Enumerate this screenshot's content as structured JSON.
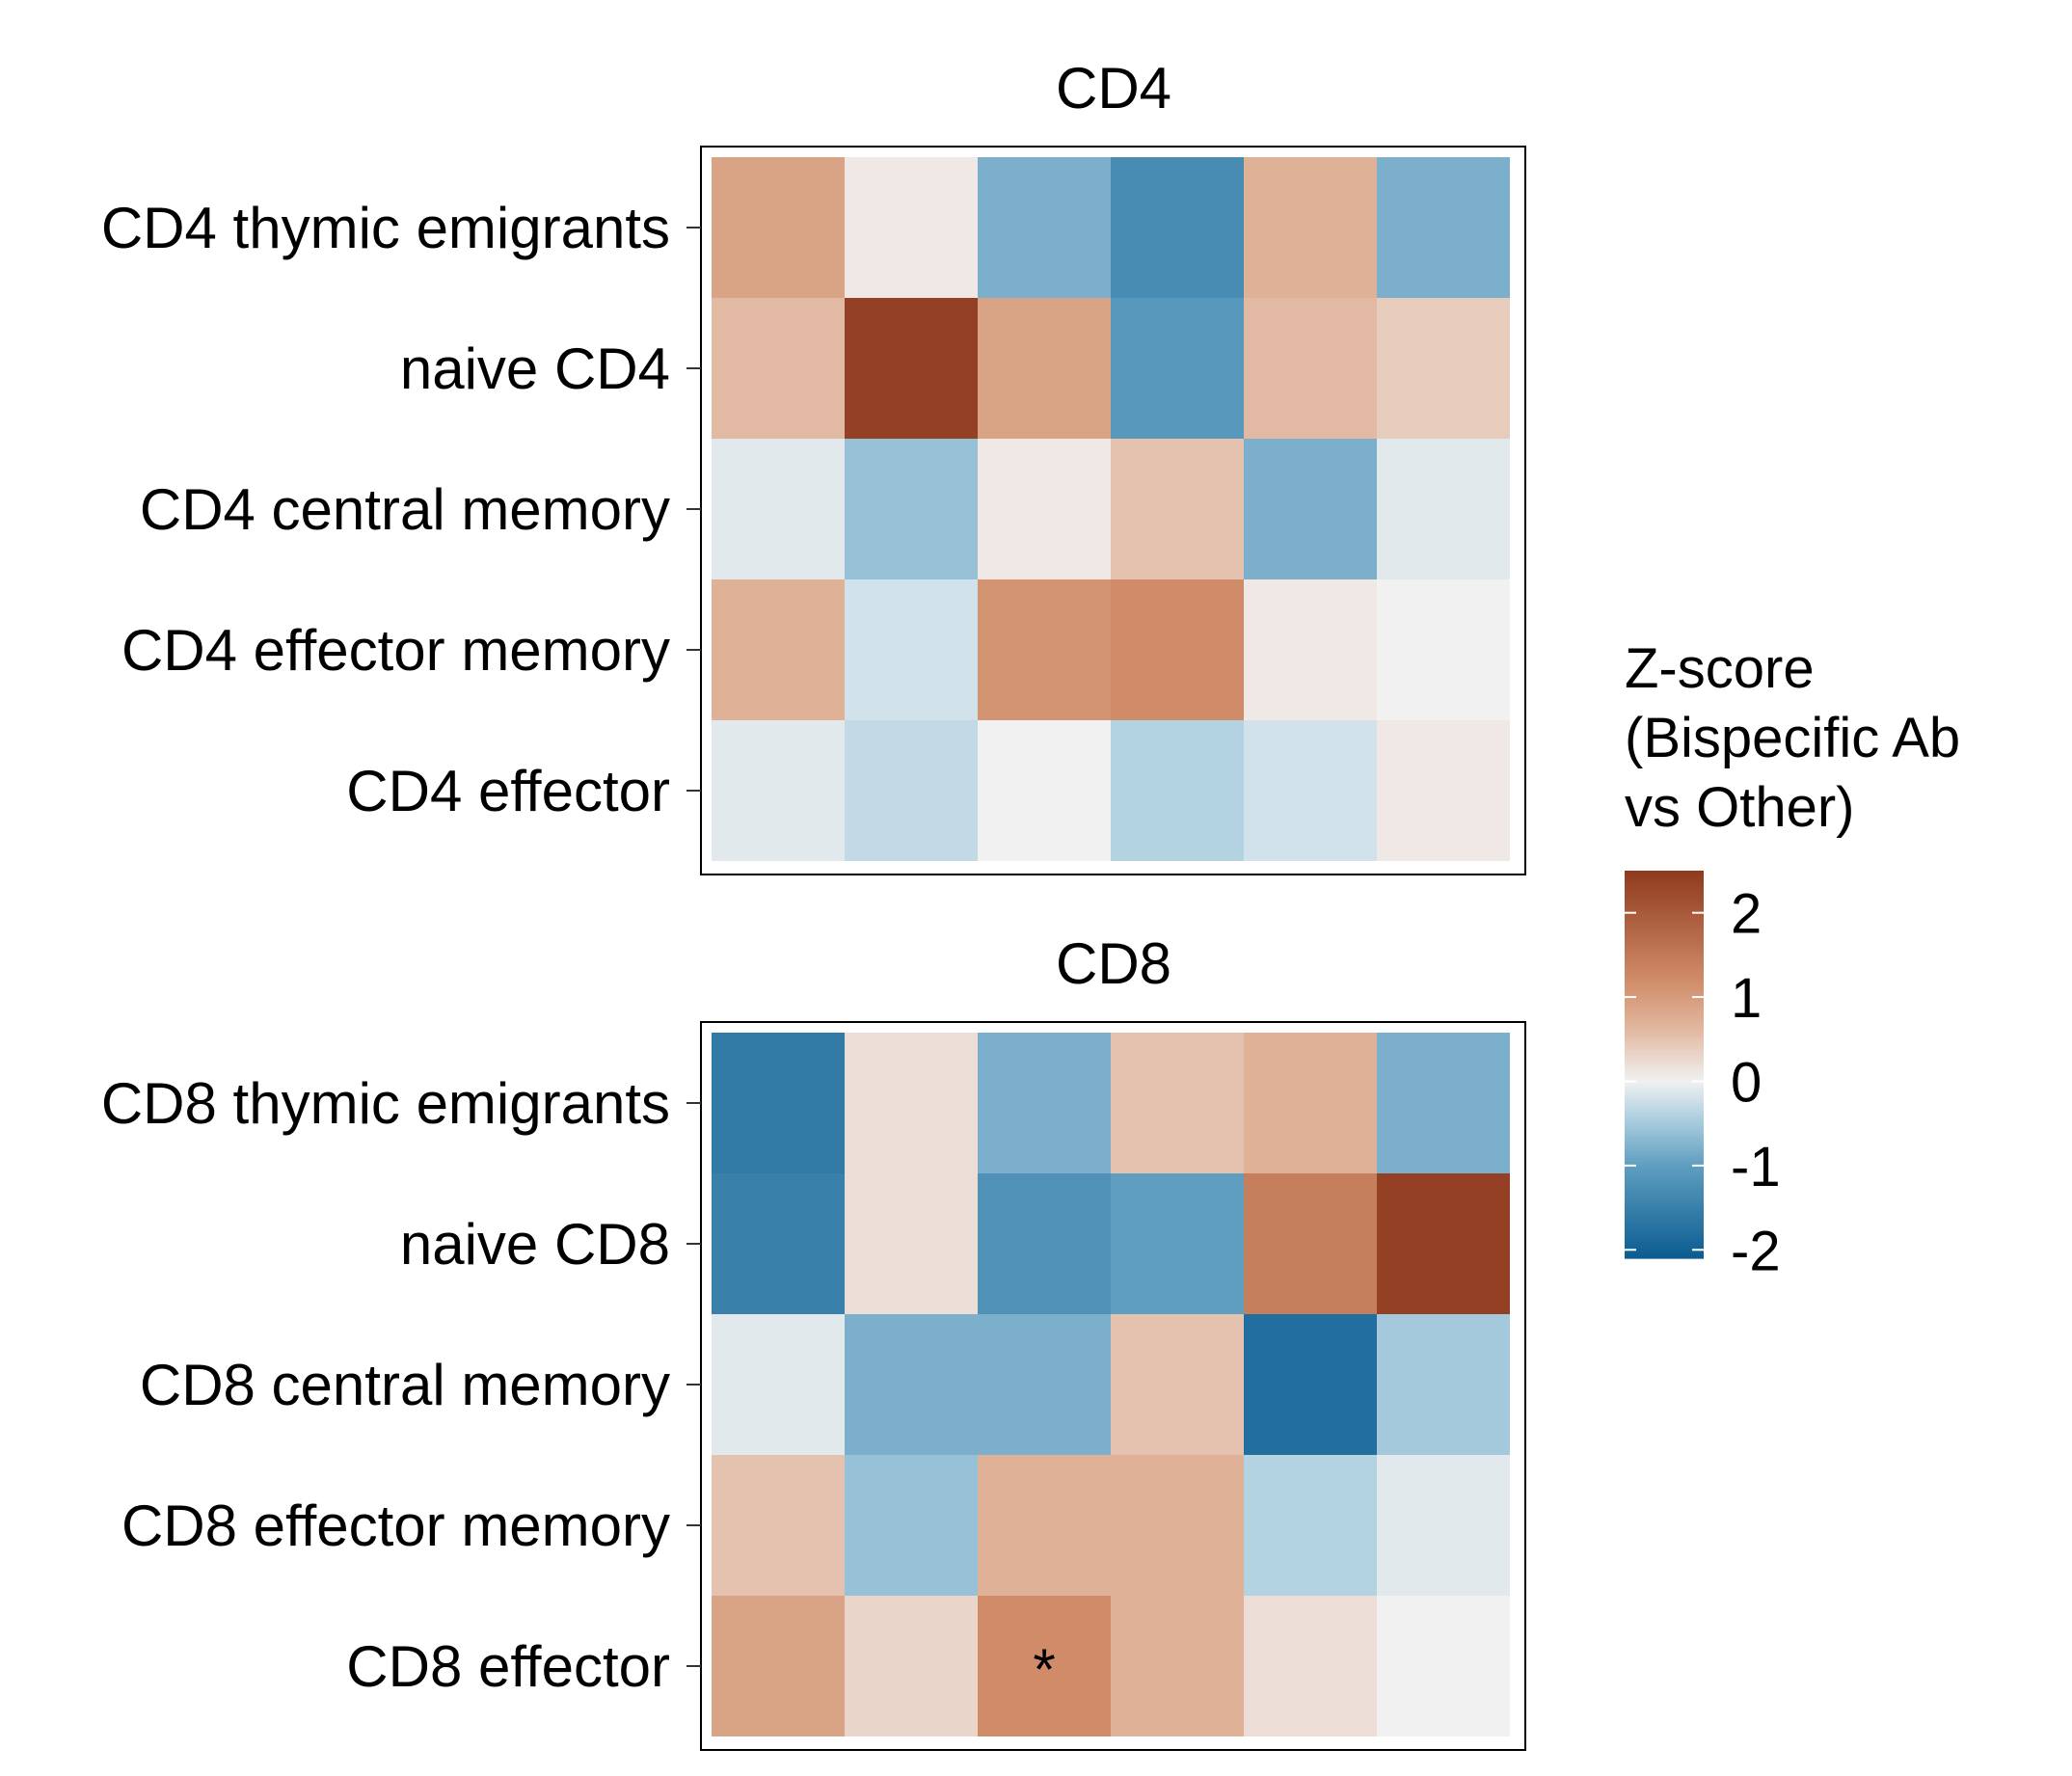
{
  "chart_data": {
    "type": "heatmap",
    "legend": {
      "title_lines": [
        "Z-score",
        "(Bispecific Ab",
        "vs Other)"
      ],
      "ticks": [
        2,
        1,
        0,
        -1,
        -2
      ],
      "tick_labels": [
        "2",
        "1",
        "0",
        "-1",
        "-2"
      ],
      "range": [
        -2.1,
        2.5
      ],
      "placement": "right",
      "colors": {
        "low": "#0b5c91",
        "mid": "#f1f1f1",
        "high": "#8f3a1e"
      }
    },
    "panels": [
      {
        "title": "CD4",
        "rows": [
          "CD4 thymic emigrants",
          "naive CD4",
          "CD4 central memory",
          "CD4 effector memory",
          "CD4 effector"
        ],
        "n_columns": 6,
        "values": [
          [
            0.9,
            0.1,
            -0.8,
            -1.3,
            0.7,
            -0.8
          ],
          [
            0.6,
            2.4,
            0.9,
            -1.1,
            0.6,
            0.4
          ],
          [
            -0.1,
            -0.6,
            0.1,
            0.5,
            -0.8,
            -0.1
          ],
          [
            0.7,
            -0.2,
            1.1,
            1.2,
            0.1,
            0.0
          ],
          [
            -0.1,
            -0.3,
            0.0,
            -0.4,
            -0.2,
            0.1
          ]
        ],
        "annotations": []
      },
      {
        "title": "CD8",
        "rows": [
          "CD8 thymic emigrants",
          "naive CD8",
          "CD8 central memory",
          "CD8 effector memory",
          "CD8 effector"
        ],
        "n_columns": 6,
        "values": [
          [
            -1.6,
            0.2,
            -0.8,
            0.5,
            0.7,
            -0.8
          ],
          [
            -1.5,
            0.2,
            -1.2,
            -1.0,
            1.4,
            2.4
          ],
          [
            -0.1,
            -0.8,
            -0.8,
            0.5,
            -1.8,
            -0.5
          ],
          [
            0.5,
            -0.6,
            0.7,
            0.7,
            -0.4,
            -0.1
          ],
          [
            0.9,
            0.3,
            1.2,
            0.7,
            0.2,
            0.0
          ]
        ],
        "annotations": [
          {
            "row": 4,
            "col": 2,
            "text": "*"
          }
        ]
      }
    ]
  }
}
